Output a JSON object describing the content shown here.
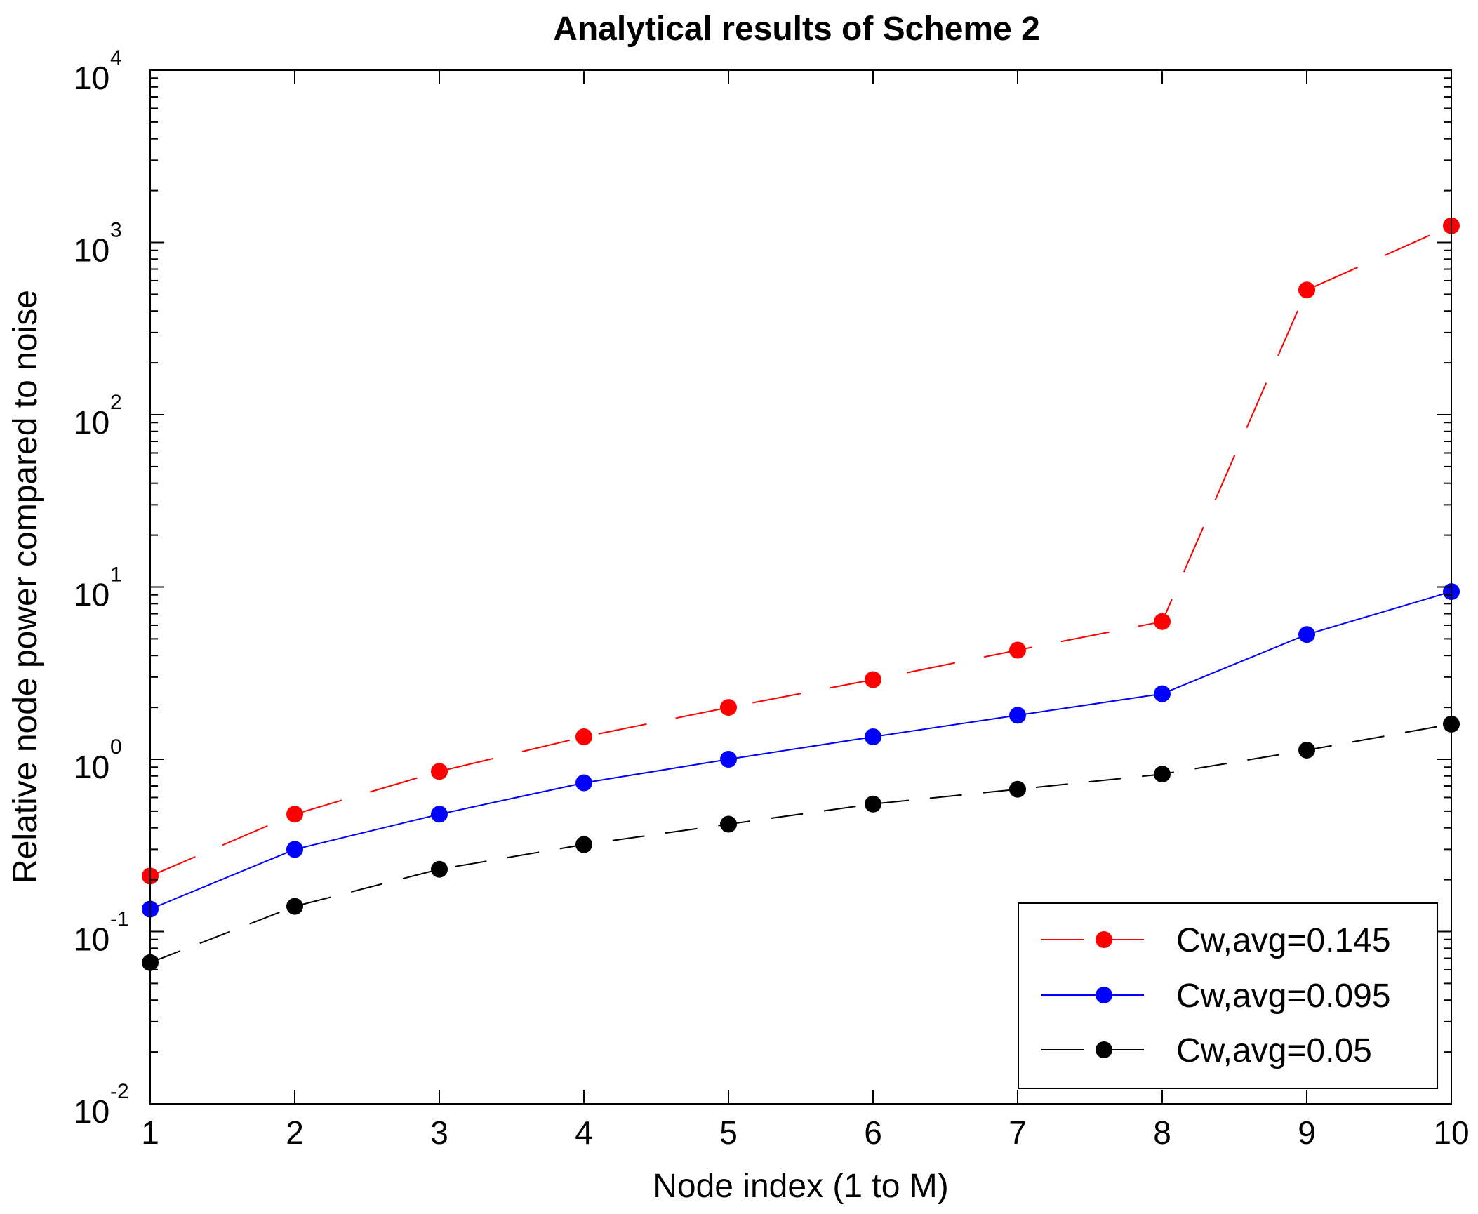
{
  "chart_data": {
    "type": "line",
    "title": "Analytical results of Scheme 2",
    "xlabel": "Node index (1 to M)",
    "ylabel": "Relative node power compared to noise",
    "x": [
      1,
      2,
      3,
      4,
      5,
      6,
      7,
      8,
      9,
      10
    ],
    "xlim": [
      1,
      10
    ],
    "yscale": "log",
    "ylim": [
      0.01,
      10000
    ],
    "y_tick_labels": [
      {
        "base": "10",
        "exp": "-2"
      },
      {
        "base": "10",
        "exp": "-1"
      },
      {
        "base": "10",
        "exp": "0"
      },
      {
        "base": "10",
        "exp": "1"
      },
      {
        "base": "10",
        "exp": "2"
      },
      {
        "base": "10",
        "exp": "3"
      },
      {
        "base": "10",
        "exp": "4"
      }
    ],
    "x_tick_labels": [
      "1",
      "2",
      "3",
      "4",
      "5",
      "6",
      "7",
      "8",
      "9",
      "10"
    ],
    "legend_position": "bottom-right",
    "series": [
      {
        "name": "Cw,avg=0.145",
        "color": "#ff0000",
        "line_style": "long-dash",
        "values": [
          0.21,
          0.48,
          0.85,
          1.35,
          2.0,
          2.9,
          4.3,
          6.3,
          530,
          1250
        ]
      },
      {
        "name": "Cw,avg=0.095",
        "color": "#0000ff",
        "line_style": "solid",
        "values": [
          0.135,
          0.3,
          0.48,
          0.73,
          1.0,
          1.35,
          1.8,
          2.4,
          5.3,
          9.4
        ]
      },
      {
        "name": "Cw,avg=0.05",
        "color": "#000000",
        "line_style": "dash",
        "values": [
          0.066,
          0.14,
          0.23,
          0.32,
          0.42,
          0.55,
          0.67,
          0.82,
          1.13,
          1.6
        ]
      }
    ]
  }
}
